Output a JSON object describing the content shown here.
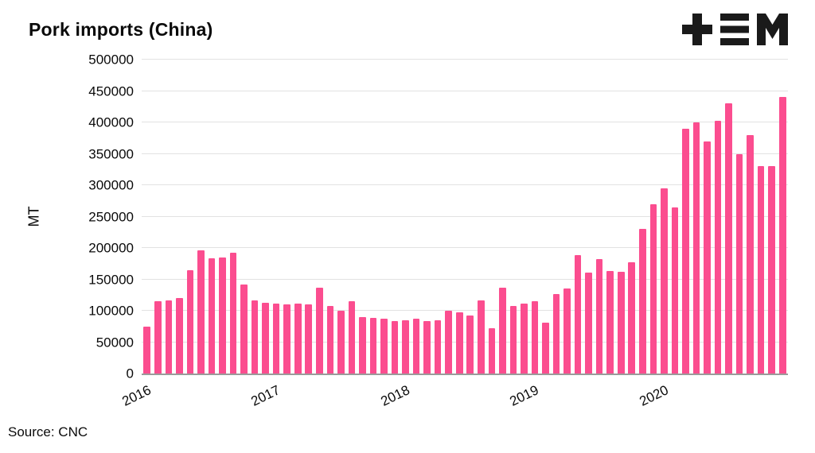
{
  "title": "Pork imports (China)",
  "source": "Source: CNC",
  "logo": {
    "name": "plus-equals-m-logo",
    "color": "#1a1a1a"
  },
  "colors": {
    "bar": "#fb4d8f",
    "grid": "#e2e2e2",
    "axis": "#9b9b9b",
    "text": "#0a0a0a"
  },
  "chart_data": {
    "type": "bar",
    "title": "Pork imports (China)",
    "xlabel": "",
    "ylabel": "MT",
    "ylim": [
      0,
      500000
    ],
    "grid": "horizontal",
    "legend": "none",
    "yticks": [
      0,
      50000,
      100000,
      150000,
      200000,
      250000,
      300000,
      350000,
      400000,
      450000,
      500000
    ],
    "x": [
      "2016-01",
      "2016-02",
      "2016-03",
      "2016-04",
      "2016-05",
      "2016-06",
      "2016-07",
      "2016-08",
      "2016-09",
      "2016-10",
      "2016-11",
      "2016-12",
      "2017-01",
      "2017-02",
      "2017-03",
      "2017-04",
      "2017-05",
      "2017-06",
      "2017-07",
      "2017-08",
      "2017-09",
      "2017-10",
      "2017-11",
      "2017-12",
      "2018-01",
      "2018-02",
      "2018-03",
      "2018-04",
      "2018-05",
      "2018-06",
      "2018-07",
      "2018-08",
      "2018-09",
      "2018-10",
      "2018-11",
      "2018-12",
      "2019-01",
      "2019-02",
      "2019-03",
      "2019-04",
      "2019-05",
      "2019-06",
      "2019-07",
      "2019-08",
      "2019-09",
      "2019-10",
      "2019-11",
      "2019-12",
      "2020-01",
      "2020-02",
      "2020-03",
      "2020-04",
      "2020-05",
      "2020-06",
      "2020-07",
      "2020-08",
      "2020-09",
      "2020-10",
      "2020-11",
      "2020-12"
    ],
    "values": [
      75000,
      115000,
      116000,
      120000,
      165000,
      196000,
      184000,
      185000,
      193000,
      142000,
      116000,
      113000,
      112000,
      110000,
      111000,
      110000,
      137000,
      108000,
      100000,
      115000,
      90000,
      88000,
      87000,
      83000,
      85000,
      87000,
      83000,
      85000,
      100000,
      97000,
      93000,
      116000,
      72000,
      137000,
      108000,
      112000,
      115000,
      81000,
      126000,
      136000,
      188000,
      161000,
      182000,
      163000,
      162000,
      177000,
      230000,
      270000,
      295000,
      265000,
      390000,
      400000,
      370000,
      403000,
      430000,
      350000,
      380000,
      330000,
      330000,
      440000
    ],
    "xticks": [
      {
        "label": "2016",
        "index": 0
      },
      {
        "label": "2017",
        "index": 12
      },
      {
        "label": "2018",
        "index": 24
      },
      {
        "label": "2019",
        "index": 36
      },
      {
        "label": "2020",
        "index": 48
      }
    ]
  }
}
